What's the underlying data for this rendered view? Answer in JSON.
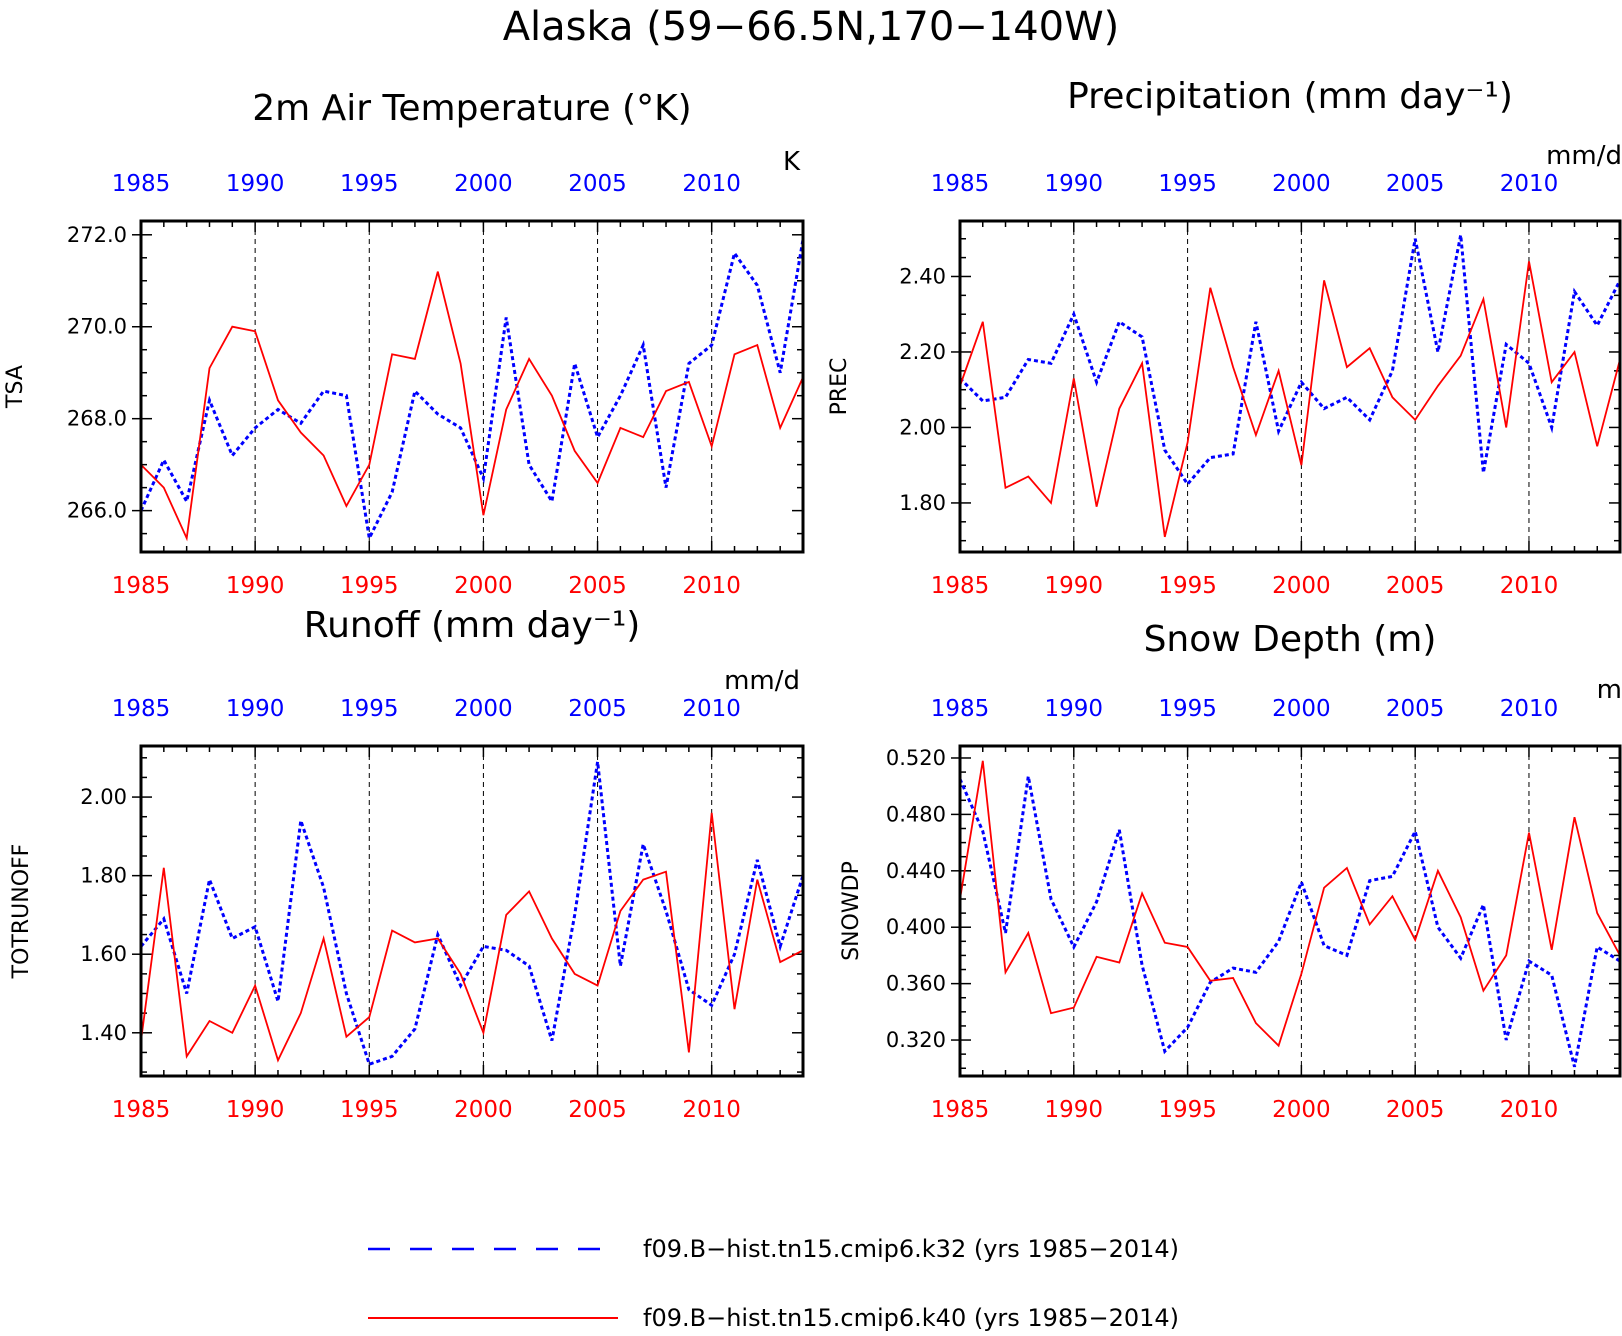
{
  "title": "Alaska (59−66.5N,170−140W)",
  "colors": {
    "k32": "#0000ff",
    "k40": "#ff0000"
  },
  "legend": [
    {
      "label": "f09.B−hist.tn15.cmip6.k32 (yrs 1985−2014)",
      "color": "#0000ff",
      "style": "dashed"
    },
    {
      "label": "f09.B−hist.tn15.cmip6.k40 (yrs 1985−2014)",
      "color": "#ff0000",
      "style": "solid"
    }
  ],
  "chart_data": [
    {
      "type": "line",
      "title": "2m Air Temperature (°K)",
      "units": "K",
      "ylabel": "TSA",
      "xlim": [
        1985,
        2014
      ],
      "ylim": [
        265.1,
        272.3
      ],
      "yticks": [
        "266.0",
        "268.0",
        "270.0",
        "272.0"
      ],
      "xticks": [
        "1985",
        "1990",
        "1995",
        "2000",
        "2005",
        "2010"
      ],
      "grid": "vertical dashed at 5-year ticks",
      "x": [
        1985,
        1986,
        1987,
        1988,
        1989,
        1990,
        1991,
        1992,
        1993,
        1994,
        1995,
        1996,
        1997,
        1998,
        1999,
        2000,
        2001,
        2002,
        2003,
        2004,
        2005,
        2006,
        2007,
        2008,
        2009,
        2010,
        2011,
        2012,
        2013,
        2014
      ],
      "series": [
        {
          "name": "f09.B−hist.tn15.cmip6.k32",
          "values": [
            266.0,
            267.1,
            266.2,
            268.4,
            267.2,
            267.8,
            268.2,
            267.9,
            268.6,
            268.5,
            265.4,
            266.4,
            268.6,
            268.1,
            267.8,
            266.7,
            270.2,
            267.0,
            266.2,
            269.2,
            267.6,
            268.5,
            269.6,
            266.5,
            269.2,
            269.6,
            271.6,
            270.9,
            269.0,
            271.9
          ]
        },
        {
          "name": "f09.B−hist.tn15.cmip6.k40",
          "values": [
            267.0,
            266.5,
            265.4,
            269.1,
            270.0,
            269.9,
            268.4,
            267.7,
            267.2,
            266.1,
            267.0,
            269.4,
            269.3,
            271.2,
            269.2,
            265.9,
            268.2,
            269.3,
            268.5,
            267.3,
            266.6,
            267.8,
            267.6,
            268.6,
            268.8,
            267.4,
            269.4,
            269.6,
            267.8,
            268.9
          ]
        }
      ]
    },
    {
      "type": "line",
      "title": "Precipitation (mm day⁻¹)",
      "units": "mm/d",
      "ylabel": "PREC",
      "xlim": [
        1985,
        2014
      ],
      "ylim": [
        1.67,
        2.547
      ],
      "yticks": [
        "1.80",
        "2.00",
        "2.20",
        "2.40"
      ],
      "xticks": [
        "1985",
        "1990",
        "1995",
        "2000",
        "2005",
        "2010"
      ],
      "grid": "vertical dashed at 5-year ticks",
      "x": [
        1985,
        1986,
        1987,
        1988,
        1989,
        1990,
        1991,
        1992,
        1993,
        1994,
        1995,
        1996,
        1997,
        1998,
        1999,
        2000,
        2001,
        2002,
        2003,
        2004,
        2005,
        2006,
        2007,
        2008,
        2009,
        2010,
        2011,
        2012,
        2013,
        2014
      ],
      "series": [
        {
          "name": "f09.B−hist.tn15.cmip6.k32",
          "values": [
            2.13,
            2.07,
            2.08,
            2.18,
            2.17,
            2.3,
            2.12,
            2.28,
            2.24,
            1.94,
            1.85,
            1.92,
            1.93,
            2.28,
            1.99,
            2.12,
            2.05,
            2.08,
            2.02,
            2.15,
            2.5,
            2.2,
            2.51,
            1.88,
            2.22,
            2.17,
            2.0,
            2.36,
            2.27,
            2.39
          ]
        },
        {
          "name": "f09.B−hist.tn15.cmip6.k40",
          "values": [
            2.11,
            2.28,
            1.84,
            1.87,
            1.8,
            2.13,
            1.79,
            2.05,
            2.17,
            1.71,
            1.96,
            2.37,
            2.16,
            1.98,
            2.15,
            1.9,
            2.39,
            2.16,
            2.21,
            2.08,
            2.02,
            2.11,
            2.19,
            2.34,
            2.0,
            2.44,
            2.12,
            2.2,
            1.95,
            2.18
          ]
        }
      ]
    },
    {
      "type": "line",
      "title": "Runoff (mm day⁻¹)",
      "units": "mm/d",
      "ylabel": "TOTRUNOFF",
      "xlim": [
        1985,
        2014
      ],
      "ylim": [
        1.29,
        2.13
      ],
      "yticks": [
        "1.40",
        "1.60",
        "1.80",
        "2.00"
      ],
      "xticks": [
        "1985",
        "1990",
        "1995",
        "2000",
        "2005",
        "2010"
      ],
      "grid": "vertical dashed at 5-year ticks",
      "x": [
        1985,
        1986,
        1987,
        1988,
        1989,
        1990,
        1991,
        1992,
        1993,
        1994,
        1995,
        1996,
        1997,
        1998,
        1999,
        2000,
        2001,
        2002,
        2003,
        2004,
        2005,
        2006,
        2007,
        2008,
        2009,
        2010,
        2011,
        2012,
        2013,
        2014
      ],
      "series": [
        {
          "name": "f09.B−hist.tn15.cmip6.k32",
          "values": [
            1.62,
            1.69,
            1.5,
            1.79,
            1.64,
            1.67,
            1.48,
            1.94,
            1.77,
            1.5,
            1.32,
            1.34,
            1.41,
            1.65,
            1.52,
            1.62,
            1.61,
            1.57,
            1.38,
            1.7,
            2.09,
            1.57,
            1.88,
            1.71,
            1.51,
            1.47,
            1.6,
            1.84,
            1.62,
            1.8
          ]
        },
        {
          "name": "f09.B−hist.tn15.cmip6.k40",
          "values": [
            1.38,
            1.82,
            1.34,
            1.43,
            1.4,
            1.52,
            1.33,
            1.45,
            1.64,
            1.39,
            1.44,
            1.66,
            1.63,
            1.64,
            1.55,
            1.4,
            1.7,
            1.76,
            1.64,
            1.55,
            1.52,
            1.71,
            1.79,
            1.81,
            1.35,
            1.96,
            1.46,
            1.79,
            1.58,
            1.61
          ]
        }
      ]
    },
    {
      "type": "line",
      "title": "Snow Depth (m)",
      "units": "m",
      "ylabel": "SNOWDP",
      "xlim": [
        1985,
        2014
      ],
      "ylim": [
        0.2945,
        0.5285
      ],
      "yticks": [
        "0.320",
        "0.360",
        "0.400",
        "0.440",
        "0.480",
        "0.520"
      ],
      "xticks": [
        "1985",
        "1990",
        "1995",
        "2000",
        "2005",
        "2010"
      ],
      "grid": "vertical dashed at 5-year ticks",
      "x": [
        1985,
        1986,
        1987,
        1988,
        1989,
        1990,
        1991,
        1992,
        1993,
        1994,
        1995,
        1996,
        1997,
        1998,
        1999,
        2000,
        2001,
        2002,
        2003,
        2004,
        2005,
        2006,
        2007,
        2008,
        2009,
        2010,
        2011,
        2012,
        2013,
        2014
      ],
      "series": [
        {
          "name": "f09.B−hist.tn15.cmip6.k32",
          "values": [
            0.505,
            0.468,
            0.396,
            0.507,
            0.42,
            0.386,
            0.418,
            0.469,
            0.373,
            0.312,
            0.329,
            0.361,
            0.371,
            0.368,
            0.39,
            0.432,
            0.387,
            0.38,
            0.433,
            0.436,
            0.468,
            0.4,
            0.378,
            0.416,
            0.32,
            0.376,
            0.366,
            0.301,
            0.386,
            0.376
          ]
        },
        {
          "name": "f09.B−hist.tn15.cmip6.k40",
          "values": [
            0.42,
            0.518,
            0.368,
            0.396,
            0.339,
            0.343,
            0.379,
            0.375,
            0.424,
            0.389,
            0.386,
            0.362,
            0.364,
            0.332,
            0.316,
            0.367,
            0.428,
            0.442,
            0.402,
            0.422,
            0.391,
            0.44,
            0.407,
            0.355,
            0.38,
            0.467,
            0.384,
            0.478,
            0.41,
            0.38
          ]
        }
      ]
    }
  ]
}
